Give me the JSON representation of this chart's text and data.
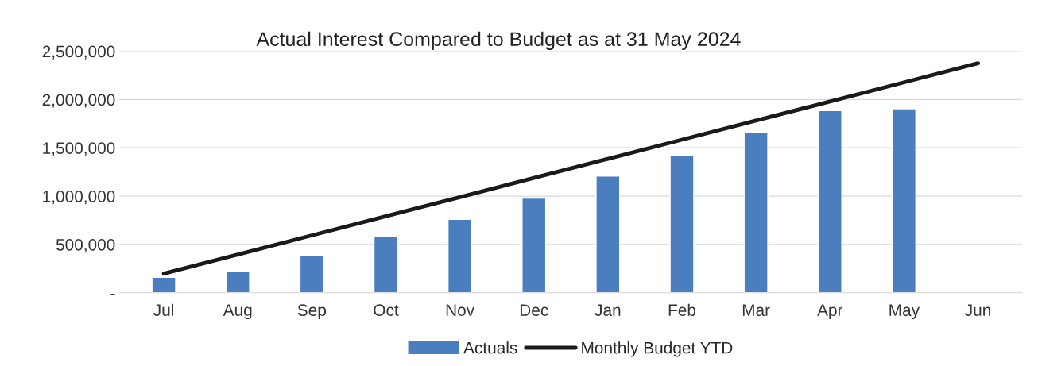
{
  "chart_data": {
    "type": "bar",
    "title": "Actual Interest Compared to Budget as at 31 May 2024",
    "categories": [
      "Jul",
      "Aug",
      "Sep",
      "Oct",
      "Nov",
      "Dec",
      "Jan",
      "Feb",
      "Mar",
      "Apr",
      "May",
      "Jun"
    ],
    "series": [
      {
        "name": "Actuals",
        "color": "#4a7ebf",
        "values": [
          160000,
          222000,
          385000,
          579000,
          759000,
          980000,
          1207000,
          1418000,
          1657000,
          1886000,
          1904000,
          null
        ]
      },
      {
        "name": "Monthly Budget YTD",
        "type": "line",
        "color": "#1a1a1a",
        "values": [
          198000,
          396000,
          594000,
          792000,
          990000,
          1188000,
          1386000,
          1584000,
          1782000,
          1980000,
          2178000,
          2376000
        ]
      }
    ],
    "ylim": [
      0,
      2500000
    ],
    "yticks": [
      {
        "value": 0,
        "label": "-"
      },
      {
        "value": 500000,
        "label": "500,000"
      },
      {
        "value": 1000000,
        "label": "1,000,000"
      },
      {
        "value": 1500000,
        "label": "1,500,000"
      },
      {
        "value": 2000000,
        "label": "2,000,000"
      },
      {
        "value": 2500000,
        "label": "2,500,000"
      }
    ],
    "grid": "y",
    "legend": "bottom",
    "marker": "none"
  }
}
